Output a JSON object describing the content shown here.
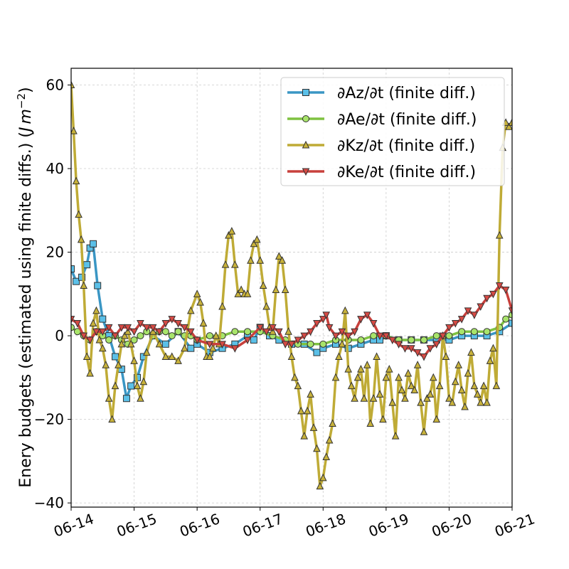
{
  "chart_data": {
    "type": "line",
    "title": "",
    "xlabel": "",
    "ylabel": "Enery budgets (estimated using finite diffs.) (J m⁻²)",
    "ylabel_main": "Enery budgets (estimated using finite diffs.) ",
    "ylabel_unit_open": "(",
    "ylabel_unit_j": "J",
    "ylabel_unit_m": "m",
    "ylabel_unit_exp": "−2",
    "ylabel_unit_close": ")",
    "xlim": [
      0,
      7
    ],
    "ylim": [
      -41,
      64
    ],
    "grid": true,
    "legend_position": "top-right",
    "x_tick_values": [
      0,
      1,
      2,
      3,
      4,
      5,
      6,
      7
    ],
    "x_tick_labels": [
      "06-14",
      "06-15",
      "06-16",
      "06-17",
      "06-18",
      "06-19",
      "06-20",
      "06-21"
    ],
    "y_tick_values": [
      -40,
      -20,
      0,
      20,
      40,
      60
    ],
    "y_tick_labels": [
      "−40",
      "−20",
      "0",
      "20",
      "40",
      "60"
    ],
    "series": [
      {
        "name": "∂Az/∂t (finite diff.)",
        "color": "#3a96c4",
        "marker_fill": "#5bc0e8",
        "marker": "square",
        "points": [
          [
            0,
            16
          ],
          [
            0.08,
            13
          ],
          [
            0.17,
            14
          ],
          [
            0.25,
            17
          ],
          [
            0.3,
            21
          ],
          [
            0.35,
            22
          ],
          [
            0.42,
            12
          ],
          [
            0.5,
            4
          ],
          [
            0.6,
            0
          ],
          [
            0.7,
            -5
          ],
          [
            0.8,
            -8
          ],
          [
            0.88,
            -15
          ],
          [
            0.95,
            -12
          ],
          [
            1.05,
            -10
          ],
          [
            1.15,
            -5
          ],
          [
            1.3,
            0
          ],
          [
            1.5,
            -2
          ],
          [
            1.7,
            1
          ],
          [
            1.9,
            -3
          ],
          [
            2.0,
            -2
          ],
          [
            2.2,
            -4
          ],
          [
            2.4,
            -3
          ],
          [
            2.6,
            -2
          ],
          [
            2.8,
            0
          ],
          [
            2.9,
            -1
          ],
          [
            3.0,
            2
          ],
          [
            3.15,
            0
          ],
          [
            3.3,
            -1
          ],
          [
            3.5,
            -2
          ],
          [
            3.7,
            -2
          ],
          [
            3.9,
            -4
          ],
          [
            4.0,
            -3
          ],
          [
            4.2,
            -2
          ],
          [
            4.4,
            -3
          ],
          [
            4.6,
            -2
          ],
          [
            4.8,
            -1
          ],
          [
            4.9,
            -1
          ],
          [
            5.0,
            0
          ],
          [
            5.2,
            -1
          ],
          [
            5.4,
            -1
          ],
          [
            5.6,
            -1
          ],
          [
            5.8,
            -1
          ],
          [
            6.0,
            -1
          ],
          [
            6.2,
            0
          ],
          [
            6.4,
            0
          ],
          [
            6.6,
            0
          ],
          [
            6.8,
            1
          ],
          [
            7.0,
            3
          ]
        ]
      },
      {
        "name": "∂Ae/∂t (finite diff.)",
        "color": "#7fc241",
        "marker_fill": "#a8e46a",
        "marker": "circle",
        "points": [
          [
            0,
            2
          ],
          [
            0.1,
            1
          ],
          [
            0.2,
            0
          ],
          [
            0.3,
            -1
          ],
          [
            0.4,
            1
          ],
          [
            0.5,
            0
          ],
          [
            0.6,
            -1
          ],
          [
            0.7,
            0
          ],
          [
            0.8,
            -1
          ],
          [
            0.9,
            -2
          ],
          [
            1.0,
            -1
          ],
          [
            1.1,
            0
          ],
          [
            1.2,
            1
          ],
          [
            1.3,
            0
          ],
          [
            1.4,
            1
          ],
          [
            1.5,
            1
          ],
          [
            1.6,
            0
          ],
          [
            1.7,
            1
          ],
          [
            1.8,
            0
          ],
          [
            1.9,
            0
          ],
          [
            2.0,
            -1
          ],
          [
            2.2,
            0
          ],
          [
            2.4,
            0
          ],
          [
            2.6,
            1
          ],
          [
            2.8,
            1
          ],
          [
            3.0,
            1
          ],
          [
            3.2,
            0
          ],
          [
            3.4,
            -1
          ],
          [
            3.6,
            -2
          ],
          [
            3.8,
            -2
          ],
          [
            4.0,
            -2
          ],
          [
            4.2,
            -1
          ],
          [
            4.4,
            -1
          ],
          [
            4.6,
            -1
          ],
          [
            4.8,
            0
          ],
          [
            5.0,
            0
          ],
          [
            5.2,
            -1
          ],
          [
            5.4,
            -1
          ],
          [
            5.6,
            -1
          ],
          [
            5.8,
            0
          ],
          [
            6.0,
            0
          ],
          [
            6.2,
            1
          ],
          [
            6.4,
            1
          ],
          [
            6.6,
            1
          ],
          [
            6.8,
            2
          ],
          [
            6.9,
            4
          ],
          [
            7.0,
            5
          ]
        ]
      },
      {
        "name": "∂Kz/∂t (finite diff.)",
        "color": "#bfab36",
        "marker_fill": "#c8b23a",
        "marker": "triangle-up",
        "points": [
          [
            0,
            60
          ],
          [
            0.04,
            49
          ],
          [
            0.08,
            37
          ],
          [
            0.12,
            29
          ],
          [
            0.16,
            23
          ],
          [
            0.2,
            12
          ],
          [
            0.25,
            -5
          ],
          [
            0.3,
            -9
          ],
          [
            0.35,
            3
          ],
          [
            0.4,
            6
          ],
          [
            0.45,
            -1
          ],
          [
            0.5,
            -3
          ],
          [
            0.55,
            -7
          ],
          [
            0.6,
            -15
          ],
          [
            0.65,
            -20
          ],
          [
            0.7,
            -12
          ],
          [
            0.75,
            -7
          ],
          [
            0.8,
            -2
          ],
          [
            0.85,
            0
          ],
          [
            0.9,
            1
          ],
          [
            0.95,
            -2
          ],
          [
            1.0,
            -6
          ],
          [
            1.05,
            -12
          ],
          [
            1.1,
            -15
          ],
          [
            1.15,
            -11
          ],
          [
            1.2,
            -4
          ],
          [
            1.3,
            1
          ],
          [
            1.4,
            -2
          ],
          [
            1.5,
            -5
          ],
          [
            1.6,
            -5
          ],
          [
            1.7,
            -6
          ],
          [
            1.8,
            -3
          ],
          [
            1.9,
            6
          ],
          [
            2.0,
            10
          ],
          [
            2.05,
            8
          ],
          [
            2.1,
            3
          ],
          [
            2.15,
            -5
          ],
          [
            2.2,
            -5
          ],
          [
            2.25,
            -3
          ],
          [
            2.3,
            0
          ],
          [
            2.35,
            -2
          ],
          [
            2.4,
            7
          ],
          [
            2.45,
            17
          ],
          [
            2.5,
            24
          ],
          [
            2.55,
            25
          ],
          [
            2.6,
            17
          ],
          [
            2.65,
            10
          ],
          [
            2.7,
            11
          ],
          [
            2.75,
            10
          ],
          [
            2.8,
            10
          ],
          [
            2.85,
            18
          ],
          [
            2.9,
            22
          ],
          [
            2.95,
            23
          ],
          [
            3.0,
            18
          ],
          [
            3.05,
            12
          ],
          [
            3.1,
            7
          ],
          [
            3.15,
            2
          ],
          [
            3.2,
            1
          ],
          [
            3.25,
            11
          ],
          [
            3.3,
            19
          ],
          [
            3.35,
            18
          ],
          [
            3.4,
            11
          ],
          [
            3.45,
            1
          ],
          [
            3.5,
            -5
          ],
          [
            3.55,
            -10
          ],
          [
            3.6,
            -12
          ],
          [
            3.65,
            -18
          ],
          [
            3.7,
            -24
          ],
          [
            3.75,
            -18
          ],
          [
            3.8,
            -14
          ],
          [
            3.85,
            -22
          ],
          [
            3.9,
            -27
          ],
          [
            3.95,
            -36
          ],
          [
            4.0,
            -34
          ],
          [
            4.05,
            -29
          ],
          [
            4.1,
            -25
          ],
          [
            4.15,
            -21
          ],
          [
            4.2,
            -10
          ],
          [
            4.25,
            -5
          ],
          [
            4.3,
            -2
          ],
          [
            4.35,
            6
          ],
          [
            4.4,
            -8
          ],
          [
            4.45,
            -12
          ],
          [
            4.5,
            -15
          ],
          [
            4.55,
            -10
          ],
          [
            4.6,
            -8
          ],
          [
            4.65,
            -15
          ],
          [
            4.7,
            -7
          ],
          [
            4.75,
            -21
          ],
          [
            4.8,
            -15
          ],
          [
            4.85,
            -5
          ],
          [
            4.9,
            -14
          ],
          [
            4.95,
            -20
          ],
          [
            5.0,
            -10
          ],
          [
            5.05,
            -8
          ],
          [
            5.1,
            -16
          ],
          [
            5.15,
            -24
          ],
          [
            5.2,
            -10
          ],
          [
            5.25,
            -13
          ],
          [
            5.3,
            -15
          ],
          [
            5.35,
            -9
          ],
          [
            5.4,
            -12
          ],
          [
            5.45,
            -13
          ],
          [
            5.5,
            -7
          ],
          [
            5.55,
            -16
          ],
          [
            5.6,
            -23
          ],
          [
            5.65,
            -15
          ],
          [
            5.7,
            -14
          ],
          [
            5.75,
            -10
          ],
          [
            5.8,
            -20
          ],
          [
            5.85,
            -12
          ],
          [
            5.9,
            0
          ],
          [
            5.95,
            -5
          ],
          [
            6.0,
            -15
          ],
          [
            6.05,
            -16
          ],
          [
            6.1,
            -11
          ],
          [
            6.15,
            -7
          ],
          [
            6.2,
            -13
          ],
          [
            6.25,
            -17
          ],
          [
            6.3,
            -9
          ],
          [
            6.35,
            -4
          ],
          [
            6.4,
            -12
          ],
          [
            6.45,
            -14
          ],
          [
            6.5,
            -16
          ],
          [
            6.55,
            -12
          ],
          [
            6.6,
            -16
          ],
          [
            6.65,
            -6
          ],
          [
            6.7,
            -3
          ],
          [
            6.75,
            -12
          ],
          [
            6.8,
            24
          ],
          [
            6.85,
            45
          ],
          [
            6.9,
            51
          ],
          [
            6.95,
            50
          ],
          [
            7.0,
            51
          ]
        ]
      },
      {
        "name": "∂Ke/∂t (finite diff.)",
        "color": "#c8403c",
        "marker_fill": "#d64a44",
        "marker": "triangle-down",
        "points": [
          [
            0,
            4
          ],
          [
            0.1,
            3
          ],
          [
            0.2,
            0
          ],
          [
            0.3,
            -1
          ],
          [
            0.4,
            1
          ],
          [
            0.5,
            1
          ],
          [
            0.6,
            2
          ],
          [
            0.7,
            0
          ],
          [
            0.8,
            2
          ],
          [
            0.9,
            2
          ],
          [
            1.0,
            1
          ],
          [
            1.1,
            3
          ],
          [
            1.2,
            2
          ],
          [
            1.3,
            2
          ],
          [
            1.4,
            1
          ],
          [
            1.5,
            3
          ],
          [
            1.6,
            4
          ],
          [
            1.7,
            3
          ],
          [
            1.8,
            2
          ],
          [
            1.9,
            1
          ],
          [
            2.0,
            -1
          ],
          [
            2.2,
            -2
          ],
          [
            2.4,
            -2
          ],
          [
            2.6,
            -3
          ],
          [
            2.8,
            -1
          ],
          [
            3.0,
            2
          ],
          [
            3.1,
            1
          ],
          [
            3.2,
            2
          ],
          [
            3.3,
            1
          ],
          [
            3.4,
            -2
          ],
          [
            3.5,
            -2
          ],
          [
            3.6,
            -1
          ],
          [
            3.7,
            0
          ],
          [
            3.8,
            1
          ],
          [
            3.9,
            3
          ],
          [
            4.0,
            4
          ],
          [
            4.05,
            5
          ],
          [
            4.1,
            2
          ],
          [
            4.2,
            0
          ],
          [
            4.3,
            1
          ],
          [
            4.4,
            0
          ],
          [
            4.5,
            1
          ],
          [
            4.6,
            4
          ],
          [
            4.7,
            5
          ],
          [
            4.8,
            3
          ],
          [
            4.9,
            0
          ],
          [
            5.0,
            0
          ],
          [
            5.1,
            -1
          ],
          [
            5.2,
            -2
          ],
          [
            5.3,
            -3
          ],
          [
            5.4,
            -3
          ],
          [
            5.5,
            -4
          ],
          [
            5.6,
            -5
          ],
          [
            5.7,
            -3
          ],
          [
            5.8,
            -2
          ],
          [
            5.9,
            0
          ],
          [
            6.0,
            2
          ],
          [
            6.1,
            3
          ],
          [
            6.2,
            4
          ],
          [
            6.3,
            6
          ],
          [
            6.4,
            5
          ],
          [
            6.5,
            7
          ],
          [
            6.6,
            9
          ],
          [
            6.7,
            10
          ],
          [
            6.8,
            12
          ],
          [
            6.9,
            11
          ],
          [
            7.0,
            6
          ]
        ]
      }
    ]
  }
}
